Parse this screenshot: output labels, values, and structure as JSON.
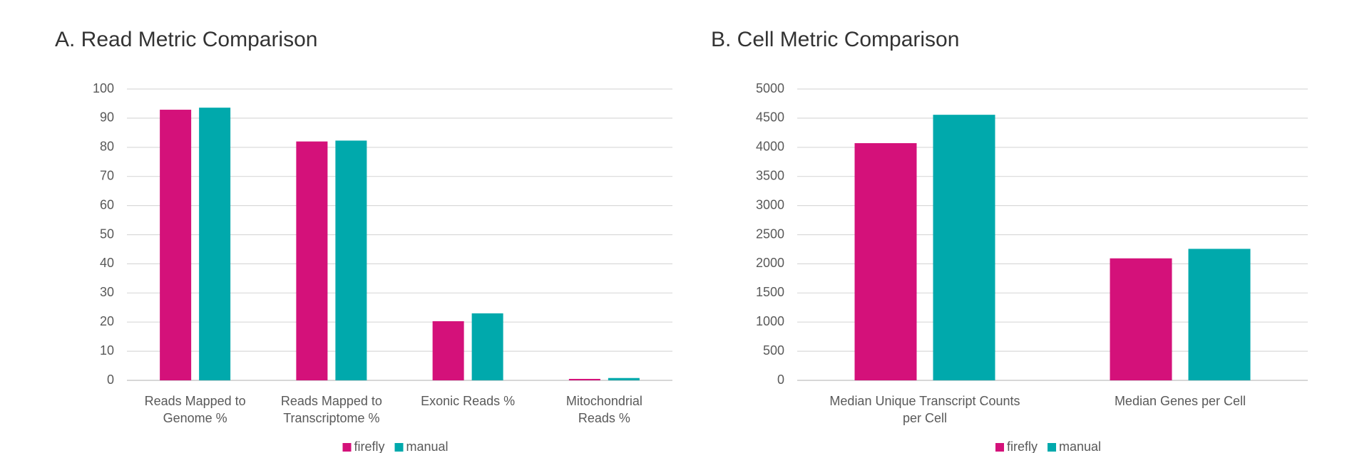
{
  "chart_data": [
    {
      "type": "bar",
      "title": "A. Read Metric Comparison",
      "categories": [
        "Reads Mapped to Genome %",
        "Reads Mapped to Transcriptome %",
        "Exonic Reads %",
        "Mitochondrial Reads %"
      ],
      "series": [
        {
          "name": "firefly",
          "color": "#d4117a",
          "values": [
            92.9,
            82,
            20.3,
            0.5
          ]
        },
        {
          "name": "manual",
          "color": "#00a9ac",
          "values": [
            93.6,
            82.3,
            23,
            0.8
          ]
        }
      ],
      "ylim": [
        0,
        100
      ],
      "yticks": [
        0,
        10,
        20,
        30,
        40,
        50,
        60,
        70,
        80,
        90,
        100
      ],
      "grid": true,
      "legend": "bottom"
    },
    {
      "type": "bar",
      "title": "B. Cell Metric Comparison",
      "categories": [
        "Median Unique Transcript Counts per Cell",
        "Median Genes per Cell"
      ],
      "series": [
        {
          "name": "firefly",
          "color": "#d4117a",
          "values": [
            4071,
            2094
          ]
        },
        {
          "name": "manual",
          "color": "#00a9ac",
          "values": [
            4558,
            2257
          ]
        }
      ],
      "ylim": [
        0,
        5000
      ],
      "yticks": [
        0,
        500,
        1000,
        1500,
        2000,
        2500,
        3000,
        3500,
        4000,
        4500,
        5000
      ],
      "grid": true,
      "legend": "bottom"
    }
  ]
}
